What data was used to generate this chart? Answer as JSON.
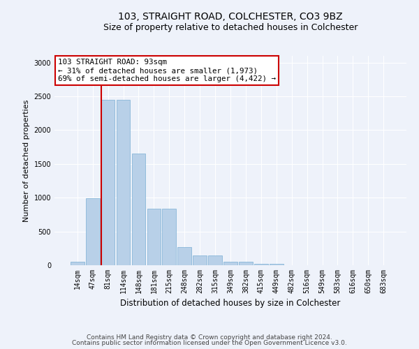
{
  "title1": "103, STRAIGHT ROAD, COLCHESTER, CO3 9BZ",
  "title2": "Size of property relative to detached houses in Colchester",
  "xlabel": "Distribution of detached houses by size in Colchester",
  "ylabel": "Number of detached properties",
  "footer1": "Contains HM Land Registry data © Crown copyright and database right 2024.",
  "footer2": "Contains public sector information licensed under the Open Government Licence v3.0.",
  "annotation_line1": "103 STRAIGHT ROAD: 93sqm",
  "annotation_line2": "← 31% of detached houses are smaller (1,973)",
  "annotation_line3": "69% of semi-detached houses are larger (4,422) →",
  "bar_categories": [
    "14sqm",
    "47sqm",
    "81sqm",
    "114sqm",
    "148sqm",
    "181sqm",
    "215sqm",
    "248sqm",
    "282sqm",
    "315sqm",
    "349sqm",
    "382sqm",
    "415sqm",
    "449sqm",
    "482sqm",
    "516sqm",
    "549sqm",
    "583sqm",
    "616sqm",
    "650sqm",
    "683sqm"
  ],
  "bar_values": [
    50,
    990,
    2450,
    2450,
    1650,
    840,
    840,
    270,
    140,
    140,
    50,
    50,
    25,
    25,
    0,
    0,
    0,
    0,
    0,
    0,
    0
  ],
  "bar_color": "#b8d0e8",
  "bar_edge_color": "#7aafd4",
  "vline_color": "#cc0000",
  "vline_x_pos": 1.57,
  "background_color": "#eef2fa",
  "grid_color": "#ffffff",
  "ylim": [
    0,
    3100
  ],
  "yticks": [
    0,
    500,
    1000,
    1500,
    2000,
    2500,
    3000
  ],
  "annotation_box_facecolor": "#ffffff",
  "annotation_box_edgecolor": "#cc0000",
  "annotation_fontsize": 7.8,
  "title1_fontsize": 10,
  "title2_fontsize": 9,
  "ylabel_fontsize": 8,
  "xlabel_fontsize": 8.5,
  "tick_fontsize": 7,
  "footer_fontsize": 6.5
}
